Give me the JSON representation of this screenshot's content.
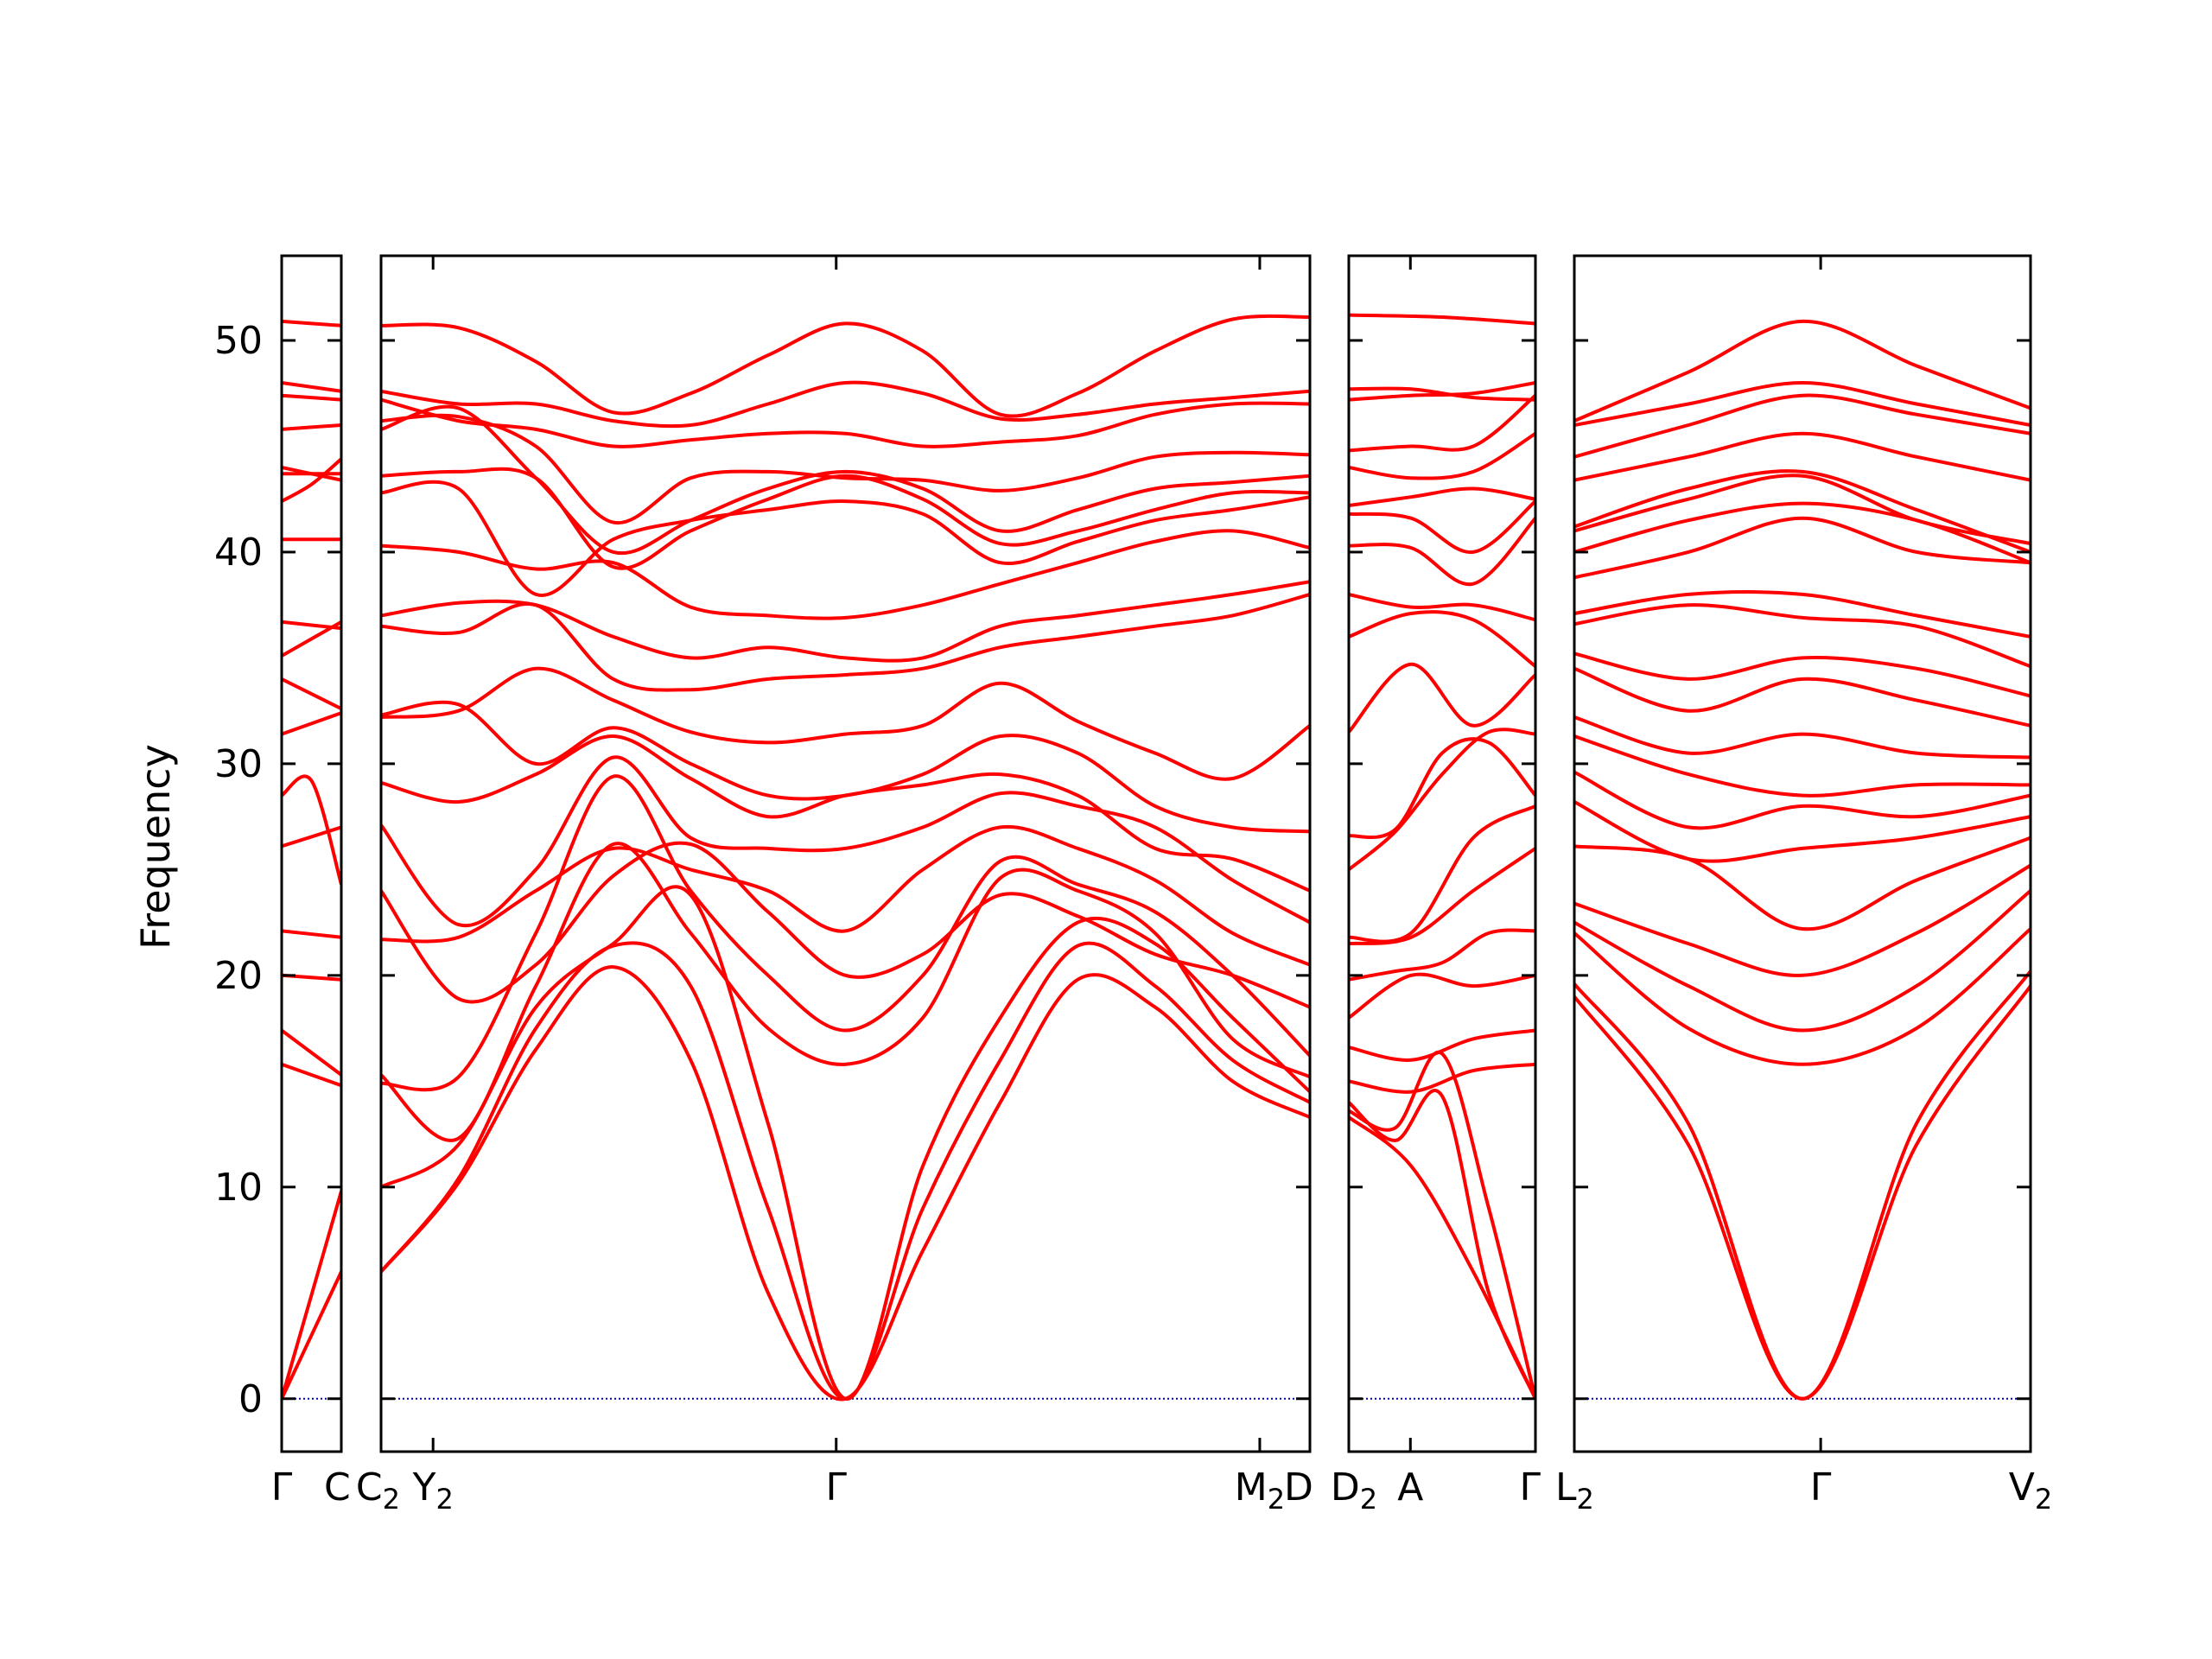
{
  "chart_data": {
    "type": "line",
    "ylabel": "Frequency",
    "ylim": [
      -2.5,
      54
    ],
    "yticks": [
      "0",
      "10",
      "20",
      "30",
      "40",
      "50"
    ],
    "series_color": "#ff0000",
    "zero_line_color": "#0000aa",
    "panels": [
      {
        "name": "panel-1",
        "xticks": [
          "Γ",
          "C"
        ],
        "branches": [
          [
            0,
            6
          ],
          [
            0,
            9.8
          ],
          [
            15.8,
            14.8
          ],
          [
            17.4,
            15.3
          ],
          [
            20.0,
            19.8
          ],
          [
            22.1,
            21.8
          ],
          [
            26.1,
            27.0
          ],
          [
            28.5,
            29.2,
            24.3
          ],
          [
            31.4,
            32.4
          ],
          [
            34.0,
            32.6
          ],
          [
            35.1,
            36.7
          ],
          [
            36.7,
            36.4
          ],
          [
            40.6,
            40.6
          ],
          [
            42.4,
            43.2,
            44.4
          ],
          [
            43.7,
            43.7
          ],
          [
            44.0,
            43.4
          ],
          [
            45.8,
            46.0
          ],
          [
            47.4,
            47.2
          ],
          [
            48.0,
            47.6
          ],
          [
            50.9,
            50.7
          ]
        ]
      },
      {
        "name": "panel-2",
        "xticks": [
          "C",
          "Y",
          "Γ",
          "M",
          "D"
        ],
        "branches": [
          [
            6,
            10.2,
            16.5,
            20.4,
            16,
            5,
            0,
            7,
            14,
            19.8,
            18.5,
            15,
            13.3
          ],
          [
            6,
            10.4,
            17.5,
            21.4,
            19.5,
            9,
            0,
            9,
            16,
            21.4,
            19.5,
            16,
            14
          ],
          [
            10,
            12,
            18.5,
            21.5,
            23.8,
            13,
            0,
            11,
            18,
            22.5,
            21.5,
            18,
            14.5
          ],
          [
            15.3,
            12.3,
            19.5,
            26.2,
            22,
            17.5,
            15.8,
            18,
            24.6,
            24,
            22,
            17,
            15.2
          ],
          [
            14.9,
            15.2,
            22.0,
            29.4,
            24,
            20,
            17.4,
            20,
            25.4,
            24.3,
            23,
            20,
            16.2
          ],
          [
            24.0,
            18.9,
            20.5,
            24.7,
            26.2,
            23,
            20.0,
            21,
            23.8,
            22.8,
            21,
            20,
            18.5
          ],
          [
            21.7,
            21.8,
            24,
            26,
            25,
            24,
            22.1,
            25,
            27.0,
            26,
            24.5,
            22,
            20.5
          ],
          [
            27.1,
            22.4,
            25,
            30.3,
            26.5,
            26,
            26.0,
            27,
            28.6,
            28,
            27,
            24.5,
            22.5
          ],
          [
            29.1,
            28.2,
            29.5,
            31.3,
            29.3,
            27.5,
            28.5,
            29,
            29.5,
            28.5,
            26,
            25.5,
            24
          ],
          [
            32.3,
            32.8,
            30,
            31.7,
            30,
            28.5,
            28.5,
            29.5,
            31.3,
            30.5,
            28,
            27,
            26.8
          ],
          [
            32.2,
            32.5,
            34.5,
            33.0,
            31.5,
            31,
            31.4,
            31.8,
            33.8,
            32,
            30.5,
            29.3,
            31.8
          ],
          [
            36.5,
            36.2,
            37.5,
            34.0,
            33.5,
            34,
            34.2,
            34.5,
            35.5,
            36,
            36.5,
            37,
            38.0
          ],
          [
            37.0,
            37.6,
            37.5,
            36.0,
            35,
            35.5,
            35.0,
            35,
            36.5,
            37,
            37.5,
            38,
            38.6
          ],
          [
            40.3,
            40.0,
            39.2,
            39.5,
            37.4,
            37,
            36.9,
            37.5,
            38.5,
            39.5,
            40.5,
            41,
            40.2
          ],
          [
            42.8,
            43.0,
            38.0,
            40.6,
            41.5,
            42,
            42.4,
            41.8,
            39.5,
            40.5,
            41.5,
            42,
            42.6
          ],
          [
            43.6,
            43.8,
            43.5,
            39.3,
            41,
            42.5,
            43.6,
            42.5,
            40.4,
            41,
            42,
            42.8,
            42.8
          ],
          [
            45.8,
            46.8,
            43.5,
            40.0,
            41.5,
            43,
            43.8,
            43,
            41.0,
            42,
            43,
            43.3,
            43.6
          ],
          [
            46.2,
            46.4,
            45,
            41.4,
            43.5,
            43.8,
            43.5,
            43.4,
            42.9,
            43.5,
            44.5,
            44.7,
            44.6
          ],
          [
            47.2,
            46.2,
            45.8,
            45.0,
            45.3,
            45.6,
            45.6,
            45.0,
            45.2,
            45.5,
            46.5,
            47.0,
            47.0
          ],
          [
            47.6,
            47.0,
            47.0,
            46.2,
            46.0,
            47.0,
            48.0,
            47.5,
            46.3,
            46.5,
            47.0,
            47.3,
            47.6
          ],
          [
            50.7,
            50.6,
            49.0,
            46.6,
            47.5,
            49.3,
            50.8,
            49.5,
            46.5,
            47.5,
            49.5,
            51.0,
            51.1
          ]
        ]
      },
      {
        "name": "panel-3",
        "xticks": [
          "D",
          "A",
          "Γ"
        ],
        "branches": [
          [
            13.3,
            11.0,
            6,
            0
          ],
          [
            14.0,
            12.2,
            14.3,
            5,
            0
          ],
          [
            13.6,
            12.8,
            16.3,
            9,
            0
          ],
          [
            15.0,
            14.5,
            15.5,
            15.8
          ],
          [
            16.6,
            16.0,
            17.0,
            17.4
          ],
          [
            18.0,
            20.0,
            19.5,
            20.0
          ],
          [
            19.8,
            20.2,
            20.6,
            22.0,
            22.1
          ],
          [
            21.5,
            21.8,
            24.0,
            26.0
          ],
          [
            21.8,
            22.0,
            26.5,
            28.0
          ],
          [
            25.0,
            26.8,
            29.5,
            31.5,
            31.4
          ],
          [
            26.6,
            26.9,
            30.5,
            31.0,
            28.5
          ],
          [
            31.5,
            34.7,
            31.8,
            34.2
          ],
          [
            36.0,
            37.1,
            36.8,
            34.6
          ],
          [
            38.0,
            37.4,
            37.5,
            36.8
          ],
          [
            40.3,
            40.2,
            38.5,
            41.6
          ],
          [
            41.8,
            41.6,
            40.0,
            42.4
          ],
          [
            42.2,
            42.6,
            43.0,
            42.5
          ],
          [
            44.0,
            43.5,
            43.8,
            45.6
          ],
          [
            44.8,
            45.0,
            45.0,
            47.4
          ],
          [
            47.2,
            47.4,
            47.5,
            48.0
          ],
          [
            47.7,
            47.7,
            47.3,
            47.2
          ],
          [
            51.2,
            51.1,
            50.8
          ]
        ]
      },
      {
        "name": "panel-4",
        "xticks": [
          "L",
          "Γ",
          "V"
        ],
        "branches": [
          [
            19.0,
            12,
            0,
            12,
            19.5
          ],
          [
            19.6,
            13,
            0,
            13,
            20.2
          ],
          [
            22.0,
            17.5,
            15.8,
            17.5,
            22.2
          ],
          [
            22.5,
            19.5,
            17.4,
            19.5,
            24.0
          ],
          [
            23.4,
            21.5,
            20.0,
            22.0,
            25.2
          ],
          [
            26.1,
            25.5,
            22.2,
            24.5,
            26.5
          ],
          [
            28.2,
            25.5,
            26.0,
            26.5,
            27.5
          ],
          [
            29.6,
            27.0,
            28.0,
            27.5,
            28.5
          ],
          [
            31.3,
            29.5,
            28.5,
            29.0,
            29.0
          ],
          [
            32.2,
            30.5,
            31.4,
            30.5,
            30.3
          ],
          [
            34.5,
            32.5,
            34.0,
            33.0,
            31.8
          ],
          [
            35.2,
            34.0,
            35.0,
            34.5,
            33.2
          ],
          [
            36.6,
            37.5,
            36.9,
            36.5,
            34.6
          ],
          [
            37.1,
            38.0,
            38.0,
            37.0,
            36.0
          ],
          [
            38.8,
            40.0,
            41.6,
            40.0,
            39.5
          ],
          [
            40.0,
            41.5,
            42.3,
            41.5,
            39.5
          ],
          [
            41.0,
            42.5,
            43.6,
            41.5,
            40.4
          ],
          [
            41.2,
            43.0,
            43.8,
            42.0,
            40.0
          ],
          [
            43.4,
            44.5,
            45.6,
            44.5,
            43.4
          ],
          [
            44.5,
            46.0,
            47.4,
            46.5,
            45.6
          ],
          [
            46.0,
            47.0,
            48.0,
            47.0,
            46.0
          ],
          [
            46.2,
            48.5,
            50.9,
            48.8,
            46.8
          ]
        ]
      }
    ]
  }
}
